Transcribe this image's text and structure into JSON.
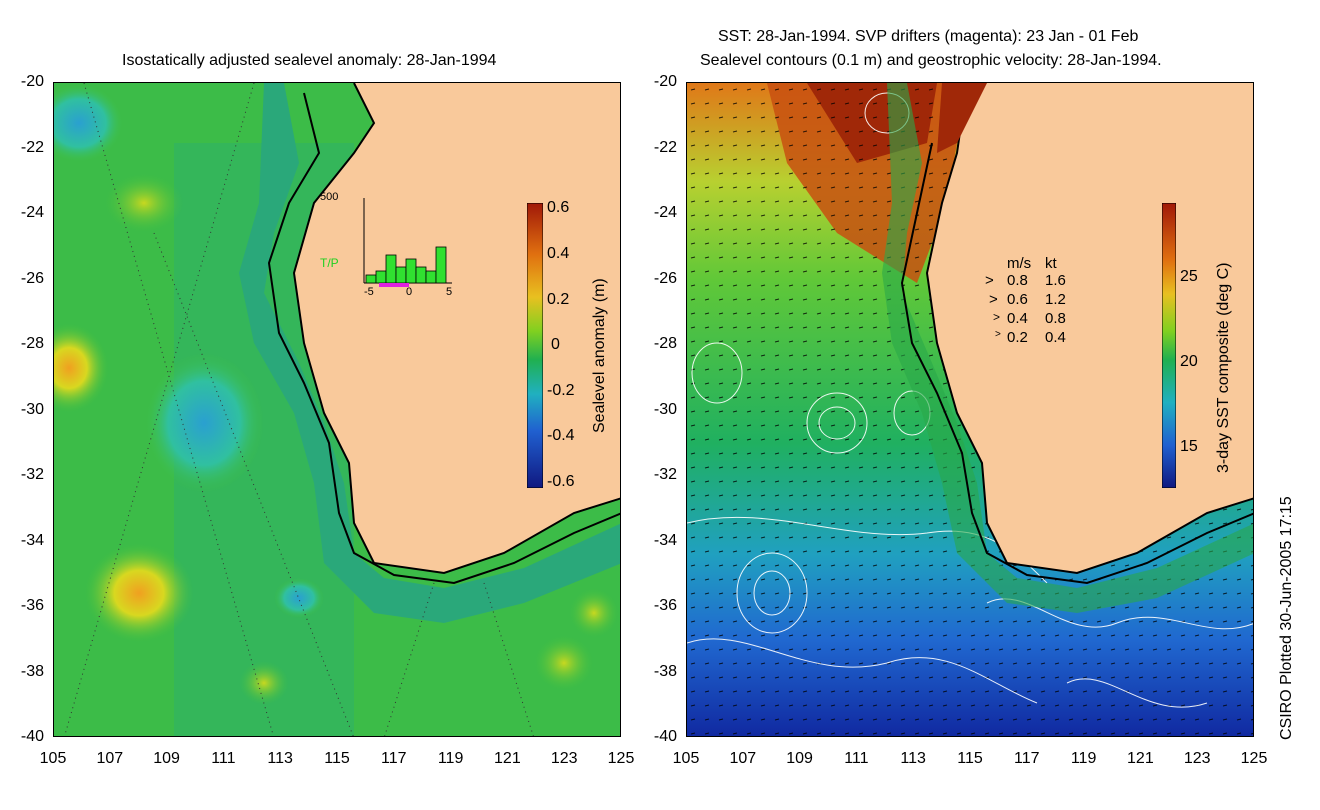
{
  "left_panel": {
    "title": "Isostatically adjusted sealevel anomaly: 28-Jan-1994",
    "colorbar_label": "Sealevel anomaly (m)",
    "colorbar_ticks": [
      "0.6",
      "0.4",
      "0.2",
      "0",
      "-0.2",
      "-0.4",
      "-0.6"
    ],
    "histogram": {
      "ymax_label": "500",
      "series_label": "T/P",
      "x_ticks": [
        "-5",
        "0",
        "5"
      ],
      "bars": [
        0.1,
        0.15,
        0.35,
        0.2,
        0.3,
        0.2,
        0.15,
        0.45
      ]
    }
  },
  "right_panel": {
    "title_line1": "SST: 28-Jan-1994. SVP drifters (magenta): 23 Jan - 01 Feb",
    "title_line2": "Sealevel contours (0.1 m) and geostrophic velocity: 28-Jan-1994.",
    "colorbar_label": "3-day SST composite (deg C)",
    "colorbar_ticks": [
      "25",
      "20",
      "15"
    ],
    "velocity_legend": {
      "header_ms": "m/s",
      "header_kt": "kt",
      "rows": [
        {
          "ms": "0.8",
          "kt": "1.6"
        },
        {
          "ms": "0.6",
          "kt": "1.2"
        },
        {
          "ms": "0.4",
          "kt": "0.8"
        },
        {
          "ms": "0.2",
          "kt": "0.4"
        }
      ]
    }
  },
  "axes": {
    "y_ticks": [
      "-20",
      "-22",
      "-24",
      "-26",
      "-28",
      "-30",
      "-32",
      "-34",
      "-36",
      "-38",
      "-40"
    ],
    "x_ticks": [
      "105",
      "107",
      "109",
      "111",
      "113",
      "115",
      "117",
      "119",
      "121",
      "123",
      "125"
    ]
  },
  "credit": "CSIRO Plotted 30-Jun-2005 17:15",
  "colors": {
    "land": "#f9c99b",
    "ocean_mid": "#2fb44a",
    "shelf": "#2aa87a"
  }
}
